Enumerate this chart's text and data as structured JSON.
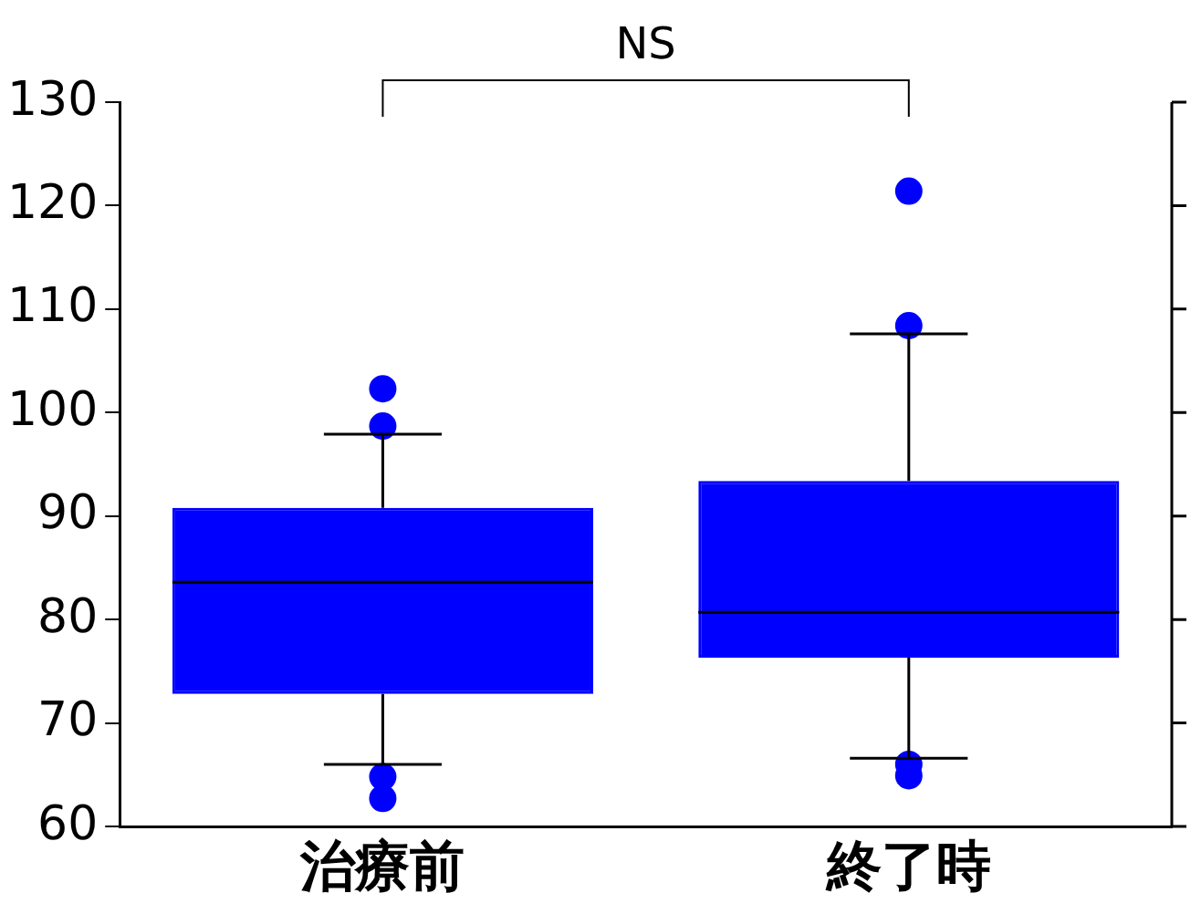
{
  "chart_data": {
    "type": "box",
    "categories": [
      "治療前",
      "終了時"
    ],
    "color": "#0000ff",
    "boxes": [
      {
        "low": 66.0,
        "q1": 72.8,
        "median": 83.6,
        "q3": 90.8,
        "high": 97.9,
        "outliers": [
          102.3,
          98.7,
          64.8,
          62.7
        ]
      },
      {
        "low": 66.6,
        "q1": 76.3,
        "median": 80.7,
        "q3": 93.4,
        "high": 107.6,
        "outliers": [
          121.4,
          108.4,
          66.0,
          64.9
        ]
      }
    ],
    "ylim": [
      60,
      130
    ],
    "yticks": [
      60,
      70,
      80,
      90,
      100,
      110,
      120,
      130
    ],
    "grid": false,
    "legend": false,
    "annotations": [
      "NS"
    ]
  }
}
